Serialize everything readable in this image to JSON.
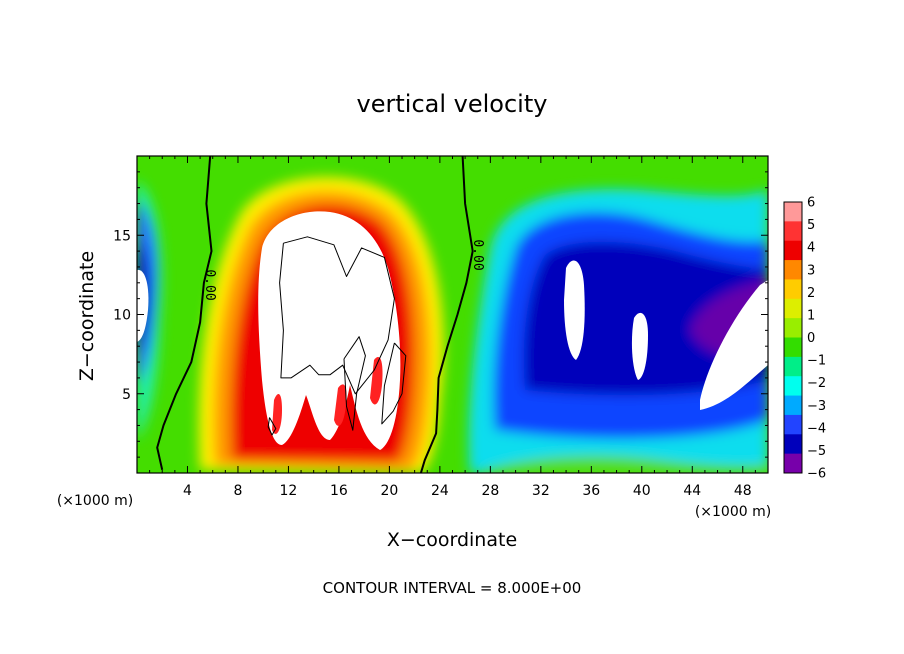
{
  "chart_data": {
    "type": "heatmap",
    "title": "vertical velocity",
    "xlabel": "X−coordinate",
    "ylabel": "Z−coordinate",
    "x_unit": "(×1000 m)",
    "y_unit": "(×1000 m)",
    "xlim": [
      0,
      50
    ],
    "ylim": [
      0,
      20
    ],
    "xticks": [
      4,
      8,
      12,
      16,
      20,
      24,
      28,
      32,
      36,
      40,
      44,
      48
    ],
    "yticks": [
      5,
      10,
      15
    ],
    "zlim": [
      -6,
      6
    ],
    "colorbar": {
      "ticks": [
        "6",
        "5",
        "4",
        "3",
        "2",
        "1",
        "0",
        "−1",
        "−2",
        "−3",
        "−4",
        "−5",
        "−6"
      ],
      "colors": [
        "#ff9999",
        "#ff3333",
        "#ee0000",
        "#ff8800",
        "#ffcc00",
        "#ddee00",
        "#99ee00",
        "#33dd00",
        "#00ee88",
        "#00ffee",
        "#00aaff",
        "#2244ff",
        "#0000bb",
        "#7700aa"
      ]
    },
    "contours": [
      {
        "level": "0.00",
        "points": [
          [
            5.8,
            20
          ],
          [
            5.5,
            17
          ],
          [
            5.9,
            14
          ],
          [
            5.3,
            12
          ],
          [
            5,
            9.5
          ],
          [
            4.3,
            7
          ],
          [
            3.1,
            5
          ],
          [
            2.1,
            3
          ],
          [
            1.6,
            1.6
          ],
          [
            2,
            0.2
          ]
        ]
      },
      {
        "level": "0.00",
        "points": [
          [
            25.8,
            20
          ],
          [
            26,
            17
          ],
          [
            26.6,
            14
          ],
          [
            26.1,
            12
          ],
          [
            25.4,
            10
          ],
          [
            24.6,
            8
          ],
          [
            23.9,
            6
          ],
          [
            23.8,
            4
          ],
          [
            23.7,
            2.5
          ],
          [
            22.8,
            0.8
          ],
          [
            22.5,
            0
          ]
        ]
      },
      {
        "level": "8",
        "points": [
          [
            11.6,
            14.5
          ],
          [
            13.5,
            14.9
          ],
          [
            15.6,
            14.4
          ],
          [
            16.6,
            12.4
          ],
          [
            17.8,
            14.2
          ],
          [
            19.6,
            13.6
          ],
          [
            20.4,
            11
          ],
          [
            19.9,
            8.4
          ],
          [
            18.8,
            6.5
          ],
          [
            17.3,
            5
          ],
          [
            16.3,
            6.8
          ],
          [
            15.3,
            6.2
          ],
          [
            14.4,
            6.2
          ],
          [
            13.7,
            6.8
          ],
          [
            12.2,
            6
          ],
          [
            11.4,
            6
          ],
          [
            11.6,
            9
          ],
          [
            11.3,
            12
          ],
          [
            11.6,
            14.5
          ]
        ]
      },
      {
        "level": "8",
        "points": [
          [
            16.4,
            7.2
          ],
          [
            17.6,
            8.6
          ],
          [
            18.1,
            7.4
          ],
          [
            17.4,
            5
          ],
          [
            17.1,
            2.7
          ],
          [
            16.6,
            4.2
          ],
          [
            16.4,
            7.2
          ]
        ]
      },
      {
        "level": "8",
        "points": [
          [
            20.4,
            8.2
          ],
          [
            21.3,
            7.4
          ],
          [
            21,
            5
          ],
          [
            20.3,
            3.9
          ],
          [
            19.4,
            3.1
          ],
          [
            19.6,
            5.5
          ],
          [
            20.4,
            8.2
          ]
        ]
      },
      {
        "level": "8",
        "points": [
          [
            10.5,
            3.5
          ],
          [
            11,
            2.8
          ],
          [
            10.7,
            2.4
          ],
          [
            10.4,
            2.9
          ],
          [
            10.5,
            3.5
          ]
        ]
      }
    ]
  },
  "note": "CONTOUR INTERVAL = 8.000E+00"
}
